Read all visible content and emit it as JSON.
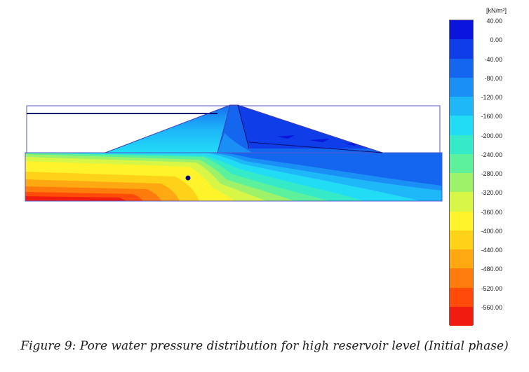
{
  "legend": {
    "unit": "[kN/m²]",
    "labels": [
      "40.00",
      "0.00",
      "-40.00",
      "-80.00",
      "-120.00",
      "-160.00",
      "-200.00",
      "-240.00",
      "-280.00",
      "-320.00",
      "-360.00",
      "-400.00",
      "-440.00",
      "-480.00",
      "-520.00",
      "-560.00"
    ],
    "colors": [
      "#0a14dc",
      "#0f3ee8",
      "#1466ef",
      "#1a8ff5",
      "#1eb7f8",
      "#22dcf6",
      "#34eac8",
      "#5cf19a",
      "#9ef26a",
      "#d8f646",
      "#fff32b",
      "#ffd21a",
      "#ffa811",
      "#ff7b0c",
      "#ff4a0a",
      "#f11c10"
    ]
  },
  "caption": "Figure 9: Pore water pressure distribution for high reservoir level (Initial phase)"
}
